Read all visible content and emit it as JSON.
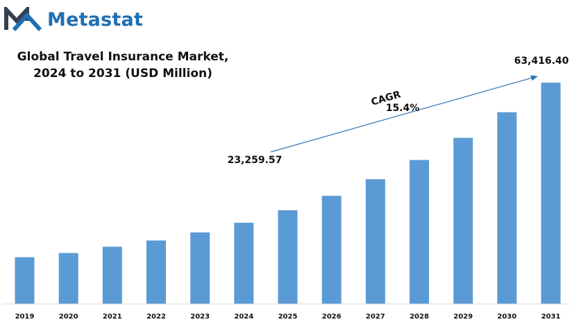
{
  "brand": {
    "name": "Metastat",
    "color": "#1f6fb2",
    "dark": "#34404f",
    "icon": "metastat-m-logo-icon"
  },
  "chart_data": {
    "type": "bar",
    "title_line1": "Global Travel Insurance Market,",
    "title_line2": "2024 to 2031 (USD Million)",
    "categories": [
      "2019",
      "2020",
      "2021",
      "2022",
      "2023",
      "2024",
      "2025",
      "2026",
      "2027",
      "2028",
      "2029",
      "2030",
      "2031"
    ],
    "values": [
      13400,
      14600,
      16400,
      18200,
      20500,
      23259.57,
      26842,
      30976,
      35746,
      41250,
      47602,
      54933,
      63416.4
    ],
    "bar_color": "#5b9bd5",
    "ylim": [
      0,
      68000
    ],
    "grid": false,
    "legend": "none",
    "annotations": {
      "start_value_label": "23,259.57",
      "end_value_label": "63,416.40",
      "cagr_label": "CAGR",
      "cagr_value": "15.4%",
      "arrow_color": "#2e75b6"
    }
  }
}
